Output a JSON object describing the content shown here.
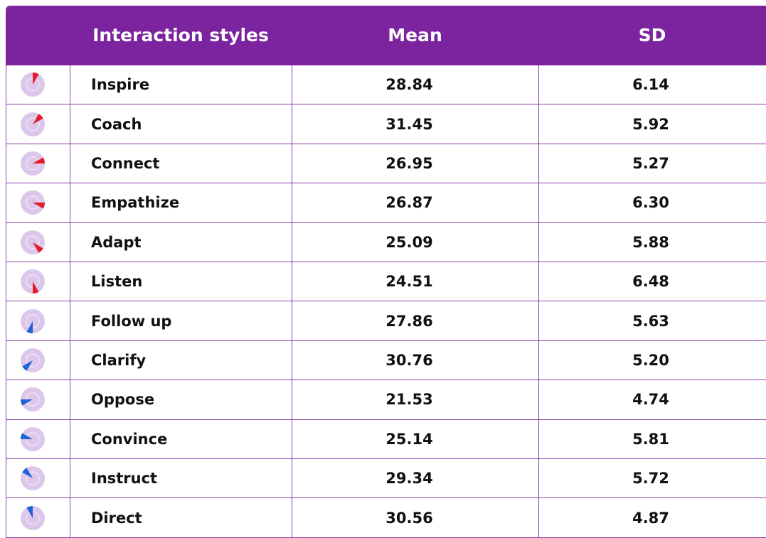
{
  "table": {
    "header": [
      "Interaction styles",
      "Mean",
      "SD"
    ],
    "rows": [
      [
        "Inspire",
        "28.84",
        "6.14"
      ],
      [
        "Coach",
        "31.45",
        "5.92"
      ],
      [
        "Connect",
        "26.95",
        "5.27"
      ],
      [
        "Empathize",
        "26.87",
        "6.30"
      ],
      [
        "Adapt",
        "25.09",
        "5.88"
      ],
      [
        "Listen",
        "24.51",
        "6.48"
      ],
      [
        "Follow up",
        "27.86",
        "5.63"
      ],
      [
        "Clarify",
        "30.76",
        "5.20"
      ],
      [
        "Oppose",
        "21.53",
        "4.74"
      ],
      [
        "Convince",
        "25.14",
        "5.81"
      ],
      [
        "Instruct",
        "29.34",
        "5.72"
      ],
      [
        "Direct",
        "30.56",
        "4.87"
      ]
    ]
  }
}
